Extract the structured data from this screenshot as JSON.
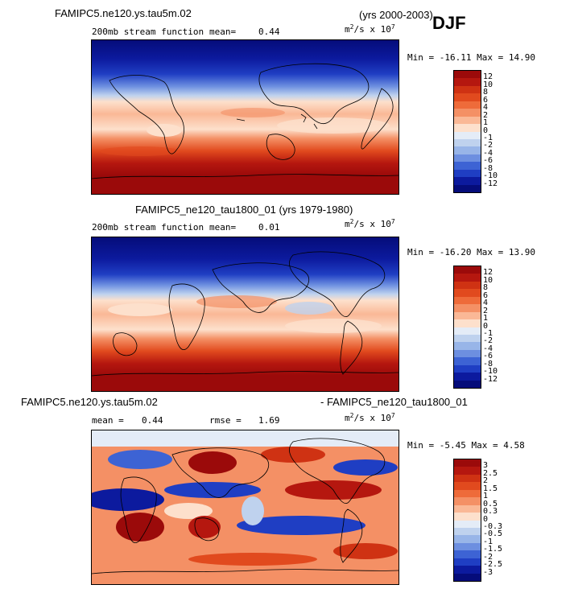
{
  "header": {
    "djf": "DJF"
  },
  "panels": [
    {
      "case_title": "FAMIPC5.ne120.ys.tau5m.02",
      "years": "(yrs 2000-2003)",
      "var_label": "200mb stream function",
      "mean_label": "mean=",
      "mean_value": "0.44",
      "units_main": "m",
      "units_exp": "2",
      "units_tail": "/s x 10",
      "units_pow": "7",
      "min_label": "Min =",
      "min_value": "-16.11",
      "max_label": "Max =",
      "max_value": "14.90",
      "ticks": [
        "12",
        "10",
        "8",
        "6",
        "4",
        "2",
        "1",
        "0",
        "-1",
        "-2",
        "-4",
        "-6",
        "-8",
        "-10",
        "-12"
      ],
      "colors": [
        "#9b0a0a",
        "#b5170f",
        "#cf3213",
        "#e14a1e",
        "#ee6b3a",
        "#f49065",
        "#fab896",
        "#fde0cc",
        "#e4ecf7",
        "#bfd2ee",
        "#98b5e8",
        "#6d8fe0",
        "#3d63d4",
        "#1f3ec3",
        "#0c1a9e",
        "#050c7a"
      ]
    },
    {
      "case_title": "FAMIPC5_ne120_tau1800_01 (yrs 1979-1980)",
      "var_label": "200mb stream function",
      "mean_label": "mean=",
      "mean_value": "0.01",
      "units_main": "m",
      "units_exp": "2",
      "units_tail": "/s x 10",
      "units_pow": "7",
      "min_label": "Min =",
      "min_value": "-16.20",
      "max_label": "Max =",
      "max_value": "13.90",
      "ticks": [
        "12",
        "10",
        "8",
        "6",
        "4",
        "2",
        "1",
        "0",
        "-1",
        "-2",
        "-4",
        "-6",
        "-8",
        "-10",
        "-12"
      ],
      "colors": [
        "#9b0a0a",
        "#b5170f",
        "#cf3213",
        "#e14a1e",
        "#ee6b3a",
        "#f49065",
        "#fab896",
        "#fde0cc",
        "#e4ecf7",
        "#bfd2ee",
        "#98b5e8",
        "#6d8fe0",
        "#3d63d4",
        "#1f3ec3",
        "#0c1a9e",
        "#050c7a"
      ]
    },
    {
      "case_title": "FAMIPC5.ne120.ys.tau5m.02",
      "case_right": "- FAMIPC5_ne120_tau1800_01",
      "mean_label": "mean =",
      "mean_value": "0.44",
      "rmse_label": "rmse =",
      "rmse_value": "1.69",
      "units_main": "m",
      "units_exp": "2",
      "units_tail": "/s x 10",
      "units_pow": "7",
      "min_label": "Min =",
      "min_value": "-5.45",
      "max_label": "Max =",
      "max_value": "4.58",
      "ticks": [
        "3",
        "2.5",
        "2",
        "1.5",
        "1",
        "0.5",
        "0.3",
        "0",
        "-0.3",
        "-0.5",
        "-1",
        "-1.5",
        "-2",
        "-2.5",
        "-3"
      ],
      "colors": [
        "#9b0a0a",
        "#b5170f",
        "#cf3213",
        "#e14a1e",
        "#ee6b3a",
        "#f49065",
        "#fab896",
        "#fde0cc",
        "#e4ecf7",
        "#bfd2ee",
        "#98b5e8",
        "#6d8fe0",
        "#3d63d4",
        "#1f3ec3",
        "#0c1a9e",
        "#050c7a"
      ]
    }
  ]
}
